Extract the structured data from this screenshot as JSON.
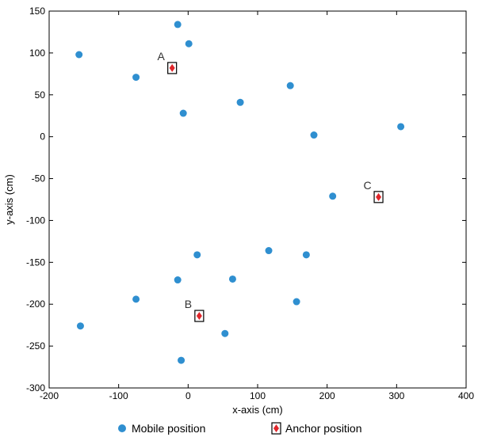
{
  "chart_data": {
    "type": "scatter",
    "xlabel": "x-axis (cm)",
    "ylabel": "y-axis (cm)",
    "xlim": [
      -200,
      400
    ],
    "ylim": [
      -300,
      150
    ],
    "xticks": [
      -200,
      -100,
      0,
      100,
      200,
      300,
      400
    ],
    "yticks": [
      150,
      100,
      50,
      0,
      -50,
      -100,
      -150,
      -200,
      -250,
      -300
    ],
    "grid": false,
    "legend_position": "bottom",
    "colors": {
      "mobile": "#2f8fd0",
      "anchor": "#e0262b",
      "anchor_box": "#000000"
    },
    "series": [
      {
        "name": "Mobile position",
        "marker": "circle",
        "points": [
          {
            "x": -15,
            "y": 134
          },
          {
            "x": 1,
            "y": 111
          },
          {
            "x": -157,
            "y": 98
          },
          {
            "x": -75,
            "y": 71
          },
          {
            "x": 147,
            "y": 61
          },
          {
            "x": 75,
            "y": 41
          },
          {
            "x": -7,
            "y": 28
          },
          {
            "x": 181,
            "y": 2
          },
          {
            "x": 306,
            "y": 12
          },
          {
            "x": 208,
            "y": -71
          },
          {
            "x": 13,
            "y": -141
          },
          {
            "x": 116,
            "y": -136
          },
          {
            "x": 170,
            "y": -141
          },
          {
            "x": -15,
            "y": -171
          },
          {
            "x": 64,
            "y": -170
          },
          {
            "x": -75,
            "y": -194
          },
          {
            "x": 156,
            "y": -197
          },
          {
            "x": -155,
            "y": -226
          },
          {
            "x": 53,
            "y": -235
          },
          {
            "x": -10,
            "y": -267
          }
        ]
      },
      {
        "name": "Anchor position",
        "marker": "diamond-in-square",
        "points": [
          {
            "x": -23,
            "y": 82,
            "label": "A"
          },
          {
            "x": 16,
            "y": -214,
            "label": "B"
          },
          {
            "x": 274,
            "y": -72,
            "label": "C"
          }
        ]
      }
    ]
  }
}
